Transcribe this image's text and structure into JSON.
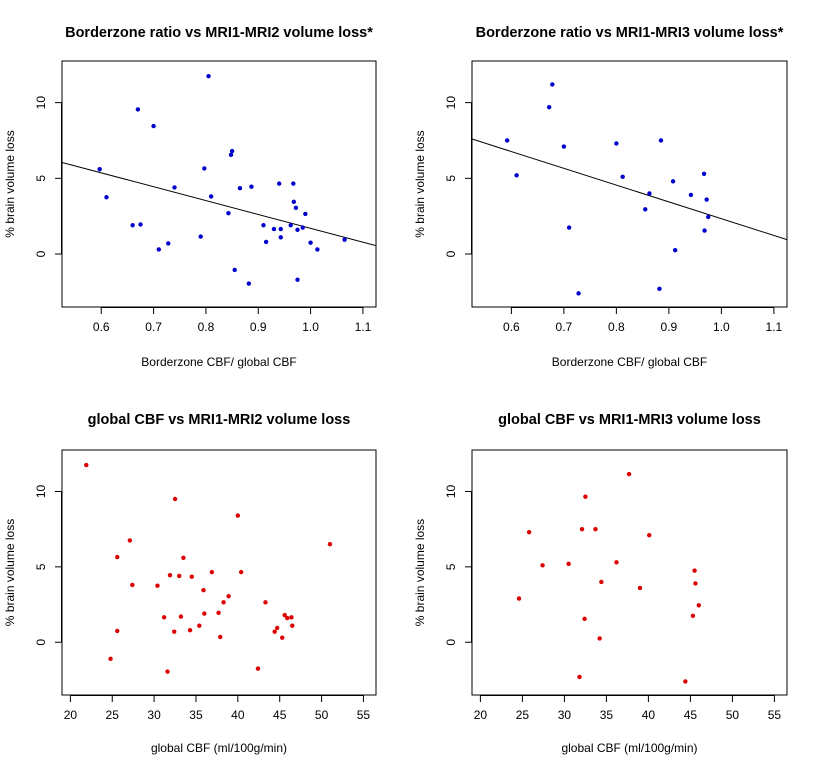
{
  "chart_data": [
    {
      "type": "scatter",
      "title": "Borderzone ratio vs MRI1-MRI2 volume loss*",
      "xlabel": "Borderzone CBF/ global CBF",
      "ylabel": "% brain volume loss",
      "xlim": [
        0.525,
        1.125
      ],
      "ylim": [
        -3.5,
        12.75
      ],
      "xticks": [
        0.6,
        0.7,
        0.8,
        0.9,
        1.0,
        1.1
      ],
      "xtick_labels": [
        "0.6",
        "0.7",
        "0.8",
        "0.9",
        "1.0",
        "1.1"
      ],
      "yticks": [
        0,
        5,
        10
      ],
      "ytick_labels": [
        "0",
        "5",
        "10"
      ],
      "color": "#0000cc",
      "fit_line": {
        "x": [
          0.525,
          1.125
        ],
        "y": [
          6.05,
          0.55
        ]
      },
      "points": [
        [
          0.597,
          5.6
        ],
        [
          0.61,
          3.75
        ],
        [
          0.66,
          1.9
        ],
        [
          0.67,
          9.55
        ],
        [
          0.675,
          1.95
        ],
        [
          0.7,
          8.45
        ],
        [
          0.71,
          0.3
        ],
        [
          0.728,
          0.7
        ],
        [
          0.74,
          4.4
        ],
        [
          0.79,
          1.15
        ],
        [
          0.797,
          5.65
        ],
        [
          0.805,
          11.75
        ],
        [
          0.81,
          3.8
        ],
        [
          0.843,
          2.7
        ],
        [
          0.848,
          6.55
        ],
        [
          0.85,
          6.8
        ],
        [
          0.855,
          -1.05
        ],
        [
          0.865,
          4.35
        ],
        [
          0.882,
          -1.95
        ],
        [
          0.887,
          4.45
        ],
        [
          0.91,
          1.9
        ],
        [
          0.915,
          0.8
        ],
        [
          0.93,
          1.65
        ],
        [
          0.94,
          4.65
        ],
        [
          0.943,
          1.1
        ],
        [
          0.943,
          1.65
        ],
        [
          0.962,
          1.9
        ],
        [
          0.967,
          4.65
        ],
        [
          0.968,
          3.45
        ],
        [
          0.972,
          3.05
        ],
        [
          0.975,
          -1.7
        ],
        [
          0.975,
          1.6
        ],
        [
          0.985,
          1.75
        ],
        [
          0.99,
          2.65
        ],
        [
          1.0,
          0.75
        ],
        [
          1.013,
          0.3
        ],
        [
          1.065,
          0.95
        ]
      ]
    },
    {
      "type": "scatter",
      "title": "Borderzone ratio vs MRI1-MRI3 volume loss*",
      "xlabel": "Borderzone CBF/ global CBF",
      "ylabel": "% brain volume loss",
      "xlim": [
        0.525,
        1.125
      ],
      "ylim": [
        -3.5,
        12.75
      ],
      "xticks": [
        0.6,
        0.7,
        0.8,
        0.9,
        1.0,
        1.1
      ],
      "xtick_labels": [
        "0.6",
        "0.7",
        "0.8",
        "0.9",
        "1.0",
        "1.1"
      ],
      "yticks": [
        0,
        5,
        10
      ],
      "ytick_labels": [
        "0",
        "5",
        "10"
      ],
      "color": "#0000cc",
      "fit_line": {
        "x": [
          0.525,
          1.125
        ],
        "y": [
          7.6,
          0.95
        ]
      },
      "points": [
        [
          0.592,
          7.5
        ],
        [
          0.61,
          5.2
        ],
        [
          0.672,
          9.7
        ],
        [
          0.678,
          11.2
        ],
        [
          0.7,
          7.1
        ],
        [
          0.71,
          1.75
        ],
        [
          0.728,
          -2.6
        ],
        [
          0.8,
          7.3
        ],
        [
          0.812,
          5.1
        ],
        [
          0.855,
          2.95
        ],
        [
          0.863,
          4.0
        ],
        [
          0.882,
          -2.3
        ],
        [
          0.885,
          7.5
        ],
        [
          0.908,
          4.8
        ],
        [
          0.912,
          0.25
        ],
        [
          0.942,
          3.9
        ],
        [
          0.967,
          5.3
        ],
        [
          0.968,
          1.55
        ],
        [
          0.972,
          3.6
        ],
        [
          0.975,
          2.45
        ]
      ]
    },
    {
      "type": "scatter",
      "title": "global CBF  vs MRI1-MRI2 volume loss",
      "xlabel": "global CBF (ml/100g/min)",
      "ylabel": "% brain volume loss",
      "xlim": [
        19,
        56.5
      ],
      "ylim": [
        -3.5,
        12.75
      ],
      "xticks": [
        20,
        25,
        30,
        35,
        40,
        45,
        50,
        55
      ],
      "xtick_labels": [
        "20",
        "25",
        "30",
        "35",
        "40",
        "45",
        "50",
        "55"
      ],
      "yticks": [
        0,
        5,
        10
      ],
      "ytick_labels": [
        "0",
        "5",
        "10"
      ],
      "color": "#dd0000",
      "points": [
        [
          21.9,
          11.75
        ],
        [
          24.8,
          -1.1
        ],
        [
          25.6,
          5.65
        ],
        [
          25.6,
          0.75
        ],
        [
          27.1,
          6.75
        ],
        [
          27.4,
          3.8
        ],
        [
          30.4,
          3.75
        ],
        [
          31.2,
          1.65
        ],
        [
          31.6,
          -1.95
        ],
        [
          31.9,
          4.45
        ],
        [
          32.4,
          0.7
        ],
        [
          32.5,
          9.5
        ],
        [
          33.0,
          4.4
        ],
        [
          33.2,
          1.7
        ],
        [
          33.5,
          5.6
        ],
        [
          34.3,
          0.8
        ],
        [
          34.5,
          4.35
        ],
        [
          35.4,
          1.1
        ],
        [
          35.9,
          3.45
        ],
        [
          36.0,
          1.9
        ],
        [
          36.9,
          4.65
        ],
        [
          37.7,
          1.95
        ],
        [
          37.9,
          0.35
        ],
        [
          38.3,
          2.65
        ],
        [
          38.9,
          3.05
        ],
        [
          40.0,
          8.4
        ],
        [
          40.4,
          4.65
        ],
        [
          42.4,
          -1.75
        ],
        [
          43.3,
          2.65
        ],
        [
          44.4,
          0.7
        ],
        [
          44.7,
          0.95
        ],
        [
          45.3,
          0.3
        ],
        [
          45.6,
          1.8
        ],
        [
          45.9,
          1.6
        ],
        [
          46.4,
          1.65
        ],
        [
          46.5,
          1.1
        ],
        [
          51.0,
          6.5
        ]
      ]
    },
    {
      "type": "scatter",
      "title": "global CBF vs MRI1-MRI3 volume loss",
      "xlabel": "global CBF (ml/100g/min)",
      "ylabel": "% brain volume loss",
      "xlim": [
        19,
        56.5
      ],
      "ylim": [
        -3.5,
        12.75
      ],
      "xticks": [
        20,
        25,
        30,
        35,
        40,
        45,
        50,
        55
      ],
      "xtick_labels": [
        "20",
        "25",
        "30",
        "35",
        "40",
        "45",
        "50",
        "55"
      ],
      "yticks": [
        0,
        5,
        10
      ],
      "ytick_labels": [
        "0",
        "5",
        "10"
      ],
      "color": "#dd0000",
      "points": [
        [
          24.6,
          2.9
        ],
        [
          25.8,
          7.3
        ],
        [
          27.4,
          5.1
        ],
        [
          30.5,
          5.2
        ],
        [
          31.8,
          -2.3
        ],
        [
          32.1,
          7.5
        ],
        [
          32.4,
          1.55
        ],
        [
          32.5,
          9.65
        ],
        [
          33.7,
          7.5
        ],
        [
          34.2,
          0.25
        ],
        [
          34.4,
          4.0
        ],
        [
          36.2,
          5.3
        ],
        [
          37.7,
          11.15
        ],
        [
          39.0,
          3.6
        ],
        [
          40.1,
          7.1
        ],
        [
          44.4,
          -2.6
        ],
        [
          45.3,
          1.75
        ],
        [
          45.5,
          4.75
        ],
        [
          45.6,
          3.9
        ],
        [
          46.0,
          2.45
        ]
      ]
    }
  ]
}
